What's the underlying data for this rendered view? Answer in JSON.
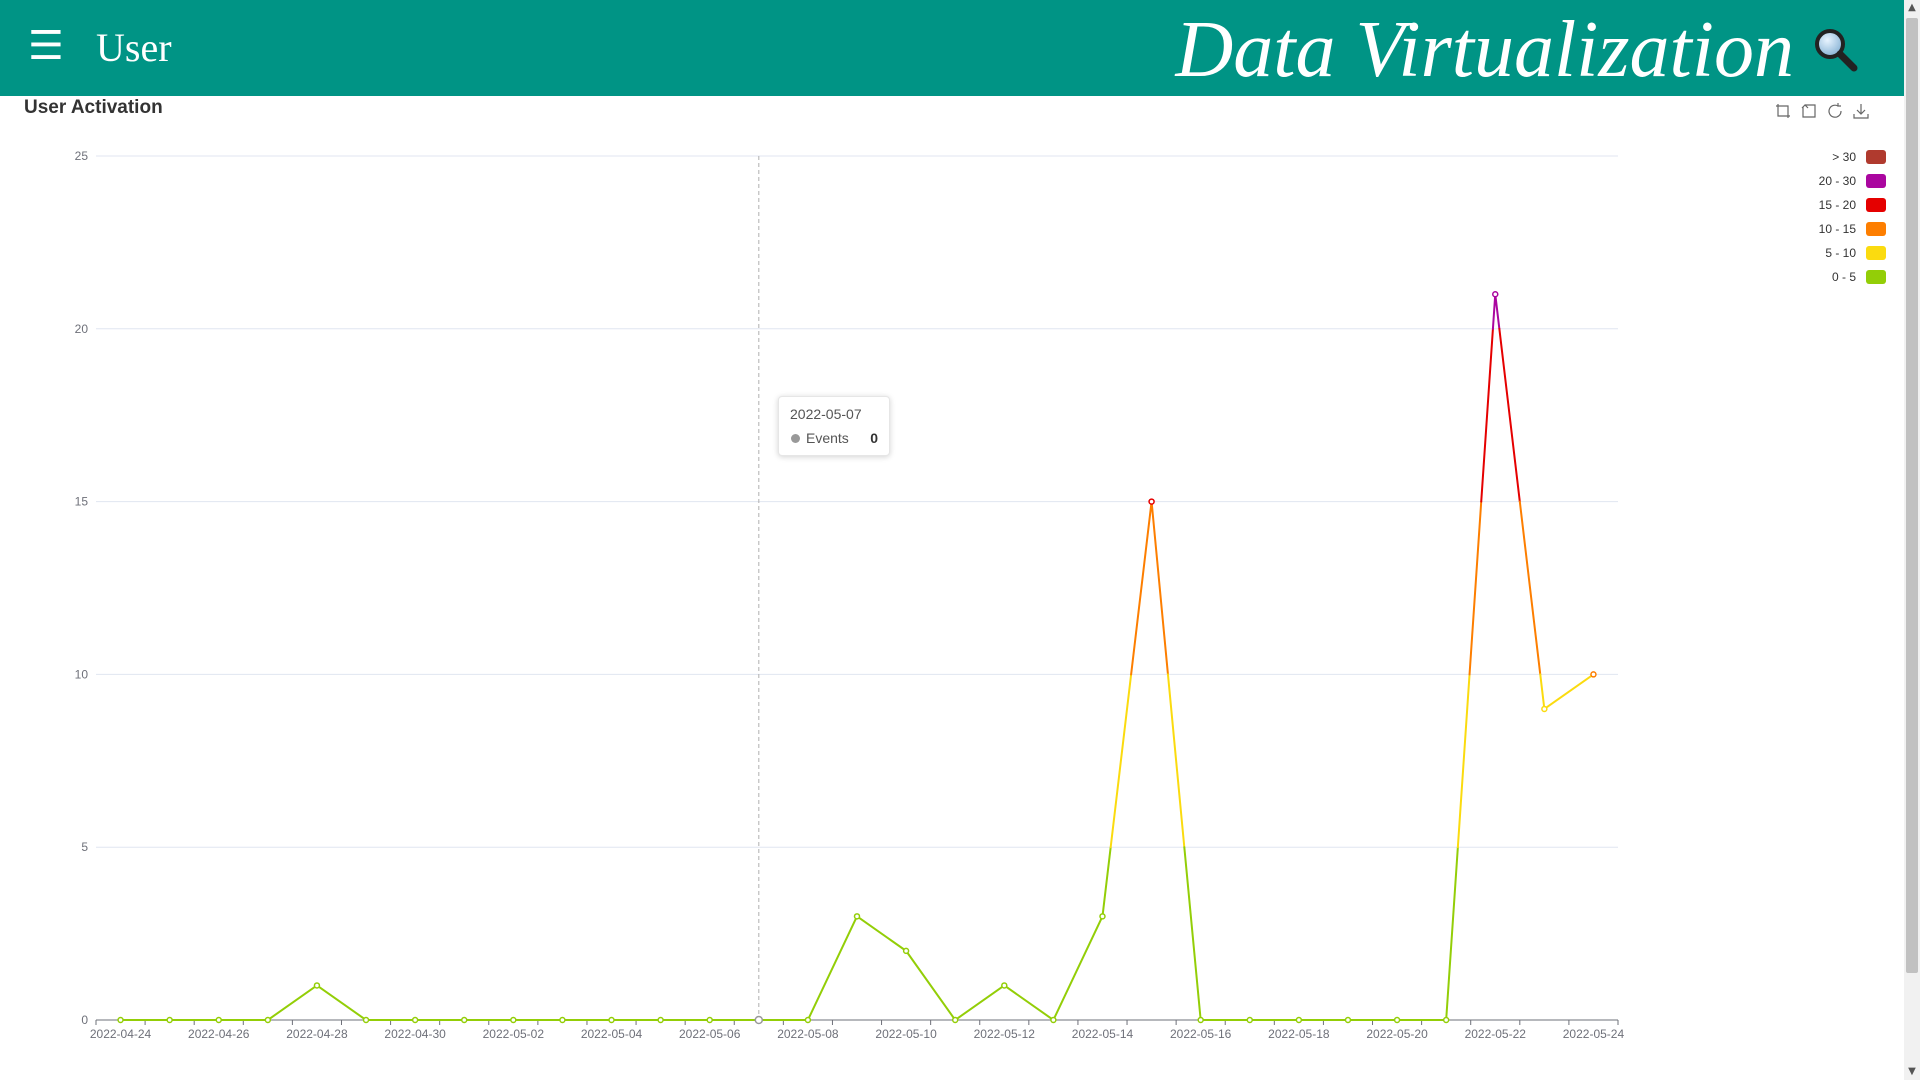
{
  "header": {
    "title": "User",
    "brand": "Data Virtualization",
    "menu_icon": "menu-icon",
    "search_icon": "search-icon",
    "background": "#009485"
  },
  "chart_title": "User Activation",
  "toolbox": {
    "icons": [
      "zoom-icon",
      "zoom-reset-icon",
      "restore-icon",
      "download-icon"
    ]
  },
  "tooltip": {
    "date": "2022-05-07",
    "series": "Events",
    "value": "0"
  },
  "chart_data": {
    "type": "line",
    "title": "User Activation",
    "xlabel": "",
    "ylabel": "",
    "ylim": [
      0,
      25
    ],
    "yticks": [
      0,
      5,
      10,
      15,
      20,
      25
    ],
    "grid": true,
    "legend_position": "top-right",
    "x": [
      "2022-04-24",
      "2022-04-25",
      "2022-04-26",
      "2022-04-27",
      "2022-04-28",
      "2022-04-29",
      "2022-04-30",
      "2022-05-01",
      "2022-05-02",
      "2022-05-03",
      "2022-05-04",
      "2022-05-05",
      "2022-05-06",
      "2022-05-07",
      "2022-05-08",
      "2022-05-09",
      "2022-05-10",
      "2022-05-11",
      "2022-05-12",
      "2022-05-13",
      "2022-05-14",
      "2022-05-15",
      "2022-05-16",
      "2022-05-17",
      "2022-05-18",
      "2022-05-19",
      "2022-05-20",
      "2022-05-21",
      "2022-05-22",
      "2022-05-23",
      "2022-05-24"
    ],
    "xtick_labels": [
      "2022-04-24",
      "2022-04-26",
      "2022-04-28",
      "2022-04-30",
      "2022-05-02",
      "2022-05-04",
      "2022-05-06",
      "2022-05-08",
      "2022-05-10",
      "2022-05-12",
      "2022-05-14",
      "2022-05-16",
      "2022-05-18",
      "2022-05-20",
      "2022-05-22",
      "2022-05-24"
    ],
    "series": [
      {
        "name": "Events",
        "values": [
          0,
          0,
          0,
          0,
          1,
          0,
          0,
          0,
          0,
          0,
          0,
          0,
          0,
          0,
          0,
          3,
          2,
          0,
          1,
          0,
          3,
          15,
          0,
          0,
          0,
          0,
          0,
          0,
          21,
          9,
          10
        ]
      }
    ],
    "visual_map": [
      {
        "label": "> 30",
        "min": 30,
        "max": null,
        "color": "#b03a2e"
      },
      {
        "label": "20 - 30",
        "min": 20,
        "max": 30,
        "color": "#aa069f"
      },
      {
        "label": "15 - 20",
        "min": 15,
        "max": 20,
        "color": "#e50000"
      },
      {
        "label": "10 - 15",
        "min": 10,
        "max": 15,
        "color": "#fd7e00"
      },
      {
        "label": "5 - 10",
        "min": 5,
        "max": 10,
        "color": "#fbdb0f"
      },
      {
        "label": "0 - 5",
        "min": 0,
        "max": 5,
        "color": "#93ce07"
      }
    ],
    "highlight_x": "2022-05-07"
  }
}
